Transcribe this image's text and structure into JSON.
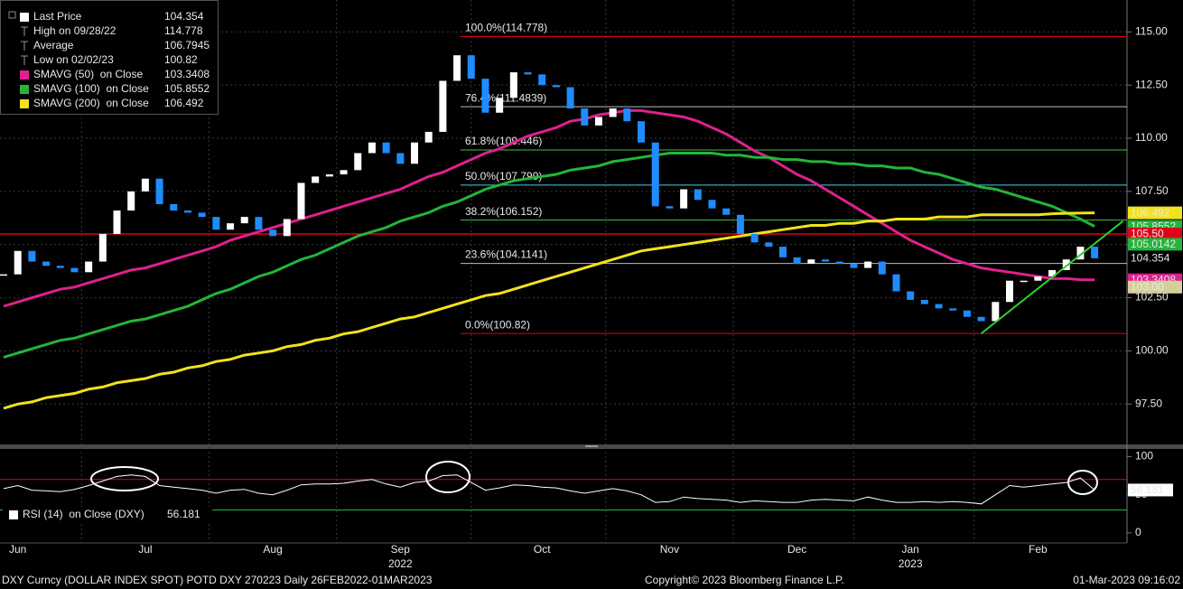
{
  "chart_data": [
    {
      "type": "candlestick",
      "categories": [
        null,
        "Jun",
        null,
        null,
        null,
        null,
        null,
        null,
        null,
        null,
        "Jul",
        null,
        null,
        null,
        null,
        null,
        null,
        null,
        null,
        "Aug",
        null,
        null,
        null,
        null,
        null,
        null,
        null,
        null,
        "Sep",
        null,
        null,
        null,
        null,
        null,
        null,
        null,
        null,
        null,
        "Oct",
        null,
        null,
        null,
        null,
        null,
        null,
        null,
        null,
        "Nov",
        null,
        null,
        null,
        null,
        null,
        null,
        null,
        null,
        "Dec",
        null,
        null,
        null,
        null,
        null,
        null,
        null,
        "Jan",
        null,
        null,
        null,
        null,
        null,
        null,
        null,
        null,
        "Feb",
        null,
        null,
        null,
        null
      ],
      "categories2": [
        null,
        null,
        null,
        null,
        null,
        null,
        null,
        null,
        null,
        null,
        null,
        null,
        null,
        null,
        null,
        null,
        null,
        null,
        null,
        null,
        null,
        null,
        null,
        null,
        null,
        null,
        null,
        null,
        "2022",
        null,
        null,
        null,
        null,
        null,
        null,
        null,
        null,
        null,
        null,
        null,
        null,
        null,
        null,
        null,
        null,
        null,
        null,
        null,
        null,
        null,
        null,
        null,
        null,
        null,
        null,
        null,
        null,
        null,
        null,
        null,
        null,
        null,
        null,
        null,
        "2023",
        null,
        null,
        null,
        null,
        null,
        null,
        null,
        null,
        null,
        null,
        null,
        null,
        null
      ],
      "ylim": [
        95.6,
        116.5
      ],
      "yticks": [
        {
          "value": 115,
          "label": "115.00"
        },
        {
          "value": 112.5,
          "label": "112.50"
        },
        {
          "value": 110,
          "label": "110.00"
        },
        {
          "value": 107.5,
          "label": "107.50"
        },
        {
          "value": 105,
          "label": "105.00"
        },
        {
          "value": 102.5,
          "label": "102.50"
        },
        {
          "value": 100,
          "label": "100.00"
        },
        {
          "value": 97.5,
          "label": "97.50"
        }
      ],
      "grid": true,
      "series": [
        {
          "name": "Last Price",
          "color": "#ffffff",
          "down_color": "#1e8cff",
          "values": [
            103.6,
            104.7,
            104.2,
            104.0,
            103.9,
            103.7,
            104.2,
            105.5,
            106.6,
            107.5,
            108.1,
            106.9,
            106.6,
            106.5,
            106.3,
            105.7,
            106.0,
            106.3,
            105.7,
            105.4,
            106.2,
            107.9,
            108.2,
            108.3,
            108.5,
            109.3,
            109.8,
            109.3,
            108.8,
            109.8,
            110.3,
            112.7,
            113.9,
            112.8,
            111.2,
            111.9,
            113.1,
            113.0,
            112.5,
            112.4,
            111.4,
            110.6,
            111.0,
            111.4,
            110.8,
            109.8,
            106.8,
            106.7,
            107.6,
            107.1,
            106.7,
            106.4,
            105.5,
            105.1,
            104.9,
            104.4,
            104.1,
            104.3,
            104.2,
            104.1,
            103.9,
            104.2,
            103.6,
            102.8,
            102.4,
            102.2,
            102.0,
            101.9,
            101.6,
            101.4,
            102.3,
            103.3,
            103.3,
            103.5,
            103.8,
            104.3,
            104.9,
            104.354
          ]
        },
        {
          "name": "SMAVG (50)  on Close",
          "color": "#e0208f",
          "values": [
            102.1,
            102.3,
            102.5,
            102.7,
            102.9,
            103.0,
            103.2,
            103.4,
            103.6,
            103.8,
            103.9,
            104.1,
            104.3,
            104.5,
            104.7,
            104.9,
            105.2,
            105.4,
            105.6,
            105.8,
            106.0,
            106.2,
            106.4,
            106.6,
            106.8,
            107.0,
            107.2,
            107.4,
            107.6,
            107.9,
            108.2,
            108.4,
            108.7,
            109.0,
            109.3,
            109.5,
            109.8,
            110.1,
            110.3,
            110.5,
            110.8,
            110.9,
            111.1,
            111.2,
            111.3,
            111.3,
            111.2,
            111.1,
            111.0,
            110.8,
            110.5,
            110.2,
            109.8,
            109.4,
            109.1,
            108.7,
            108.3,
            108.0,
            107.6,
            107.2,
            106.8,
            106.4,
            106.0,
            105.6,
            105.2,
            104.9,
            104.6,
            104.3,
            104.1,
            103.9,
            103.8,
            103.7,
            103.6,
            103.5,
            103.4,
            103.4,
            103.35,
            103.3408
          ]
        },
        {
          "name": "SMAVG (100)  on Close",
          "color": "#22b53a",
          "values": [
            99.7,
            99.9,
            100.1,
            100.3,
            100.5,
            100.6,
            100.8,
            101.0,
            101.2,
            101.4,
            101.5,
            101.7,
            101.9,
            102.1,
            102.4,
            102.7,
            102.9,
            103.2,
            103.5,
            103.7,
            104.0,
            104.3,
            104.5,
            104.8,
            105.1,
            105.4,
            105.6,
            105.8,
            106.1,
            106.3,
            106.5,
            106.8,
            107.0,
            107.3,
            107.6,
            107.8,
            108.0,
            108.1,
            108.2,
            108.3,
            108.5,
            108.6,
            108.7,
            108.9,
            109.0,
            109.1,
            109.2,
            109.3,
            109.3,
            109.3,
            109.3,
            109.2,
            109.2,
            109.1,
            109.1,
            109.0,
            109.0,
            108.9,
            108.9,
            108.8,
            108.8,
            108.7,
            108.7,
            108.6,
            108.6,
            108.4,
            108.3,
            108.1,
            107.9,
            107.7,
            107.6,
            107.4,
            107.2,
            107.0,
            106.8,
            106.5,
            106.2,
            105.8552
          ]
        },
        {
          "name": "SMAVG (200)  on Close",
          "color": "#f2e21c",
          "values": [
            97.3,
            97.5,
            97.6,
            97.8,
            97.9,
            98.0,
            98.2,
            98.3,
            98.5,
            98.6,
            98.7,
            98.9,
            99.0,
            99.2,
            99.3,
            99.5,
            99.6,
            99.8,
            99.9,
            100.0,
            100.2,
            100.3,
            100.5,
            100.6,
            100.8,
            100.9,
            101.1,
            101.3,
            101.5,
            101.6,
            101.8,
            102.0,
            102.2,
            102.4,
            102.6,
            102.7,
            102.9,
            103.1,
            103.3,
            103.5,
            103.7,
            103.9,
            104.1,
            104.3,
            104.5,
            104.7,
            104.8,
            104.9,
            105.0,
            105.1,
            105.2,
            105.3,
            105.4,
            105.5,
            105.6,
            105.7,
            105.8,
            105.9,
            105.9,
            106.0,
            106.0,
            106.1,
            106.1,
            106.2,
            106.2,
            106.2,
            106.3,
            106.3,
            106.3,
            106.4,
            106.4,
            106.4,
            106.4,
            106.4,
            106.45,
            106.47,
            106.48,
            106.492
          ]
        }
      ],
      "stats": [
        {
          "label": "High on 09/28/22",
          "value": 114.778
        },
        {
          "label": "Average",
          "value": 106.7945
        },
        {
          "label": "Low on 02/02/23",
          "value": 100.82
        }
      ],
      "fib_levels": [
        {
          "label": "100.0%(114.778)",
          "value": 114.778,
          "color": "#e0001b"
        },
        {
          "label": "76.4%(111.4839)",
          "value": 111.4839,
          "color": "#bdbdbd"
        },
        {
          "label": "61.8%(109.446)",
          "value": 109.446,
          "color": "#3cc43c"
        },
        {
          "label": "50.0%(107.799)",
          "value": 107.799,
          "color": "#45d0e6"
        },
        {
          "label": "38.2%(106.152)",
          "value": 106.152,
          "color": "#3cc43c"
        },
        {
          "label": "23.6%(104.1141)",
          "value": 104.1141,
          "color": "#bdbdbd"
        },
        {
          "label": "0.0%(100.82)",
          "value": 100.82,
          "color": "#e0001b"
        }
      ],
      "trendline": {
        "color": "#2ed12e",
        "x": [
          69,
          79
        ],
        "values": [
          100.82,
          106.1
        ]
      },
      "price_tags": [
        {
          "value": 103.3408,
          "color": "#e0208f",
          "text_color": "#ffffff"
        },
        {
          "value": 105.8552,
          "color": "#22b53a",
          "text_color": "#ffffff"
        },
        {
          "value": 106.492,
          "color": "#f2e21c",
          "text_color": "#000000"
        },
        {
          "value": 105.5,
          "label": "105.50",
          "color": "#e0001b",
          "text_color": "#ffffff",
          "line": true
        },
        {
          "value": 105.0142,
          "color": "#22b53a",
          "text_color": "#000000"
        },
        {
          "value": 104.354,
          "color": "#000000",
          "text_color": "#ffffff"
        },
        {
          "value": 103,
          "label": "103.00",
          "color": "#d6cf9a",
          "text_color": "#000000"
        }
      ]
    },
    {
      "type": "line",
      "ylim": [
        -12,
        110
      ],
      "yticks": [
        100,
        50,
        0
      ],
      "levels": [
        {
          "value": 70,
          "color": "#e0001b"
        },
        {
          "value": 30,
          "color": "#22b53a"
        }
      ],
      "series": [
        {
          "name": "RSI (14)  on Close (DXY)",
          "color": "#ffffff",
          "values": [
            58,
            62,
            56,
            55,
            54,
            57,
            62,
            68,
            74,
            76,
            74,
            62,
            60,
            58,
            56,
            52,
            56,
            57,
            52,
            50,
            56,
            63,
            64,
            64,
            65,
            68,
            70,
            64,
            60,
            66,
            68,
            75,
            76,
            66,
            56,
            59,
            63,
            62,
            60,
            59,
            55,
            52,
            55,
            58,
            55,
            50,
            40,
            41,
            47,
            45,
            44,
            43,
            40,
            42,
            41,
            40,
            40,
            43,
            44,
            43,
            42,
            47,
            43,
            40,
            40,
            41,
            40,
            41,
            40,
            38,
            50,
            62,
            60,
            62,
            64,
            66,
            72,
            56.181
          ]
        }
      ]
    }
  ],
  "footer": {
    "left": "DXY Curncy (DOLLAR INDEX SPOT) POTD DXY 270223  Daily 26FEB2022-01MAR2023",
    "center": "Copyright© 2023 Bloomberg Finance L.P.",
    "right": "01-Mar-2023 09:16:02"
  }
}
